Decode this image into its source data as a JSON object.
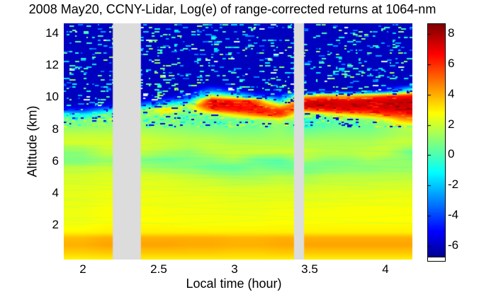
{
  "title": "2008 May20, CCNY-Lidar, Log(e) of range-corrected returns at 1064-nm",
  "axes": {
    "x": {
      "label": "Local time (hour)",
      "ticks": [
        2,
        2.5,
        3,
        3.5,
        4
      ]
    },
    "y": {
      "label": "Altitude (km)",
      "ticks": [
        14,
        12,
        10,
        8,
        6,
        4,
        2
      ]
    }
  },
  "colorbar": {
    "ticks": [
      8,
      6,
      4,
      2,
      0,
      -2,
      -4,
      -6
    ],
    "white_below": -6.68,
    "colormap": "jet"
  },
  "data_gaps_hours": [
    [
      2.197,
      2.383
    ],
    [
      3.395,
      3.462
    ]
  ],
  "gap_color": "#dcdcdc",
  "chart_data": {
    "type": "heatmap",
    "title": "2008 May20, CCNY-Lidar, Log(e) of range-corrected returns at 1064-nm",
    "xlabel": "Local time (hour)",
    "ylabel": "Altitude (km)",
    "colormap": "jet",
    "clim": [
      -6.98,
      8.65
    ],
    "xlim": [
      1.873,
      4.178
    ],
    "ylim": [
      -0.1,
      14.6
    ],
    "xticks": [
      2,
      2.5,
      3,
      3.5,
      4
    ],
    "yticks": [
      14,
      12,
      10,
      8,
      6,
      4,
      2
    ],
    "colorbar_ticks": [
      8,
      6,
      4,
      2,
      0,
      -2,
      -4,
      -6
    ],
    "x_hours": [
      1.87,
      2.0,
      2.15,
      2.38,
      2.55,
      2.7,
      2.85,
      3.0,
      3.15,
      3.3,
      3.47,
      3.6,
      3.75,
      3.9,
      4.0,
      4.1,
      4.18
    ],
    "altitudes_km": [
      14.6,
      13.5,
      12.5,
      11.5,
      10.8,
      10.4,
      10.1,
      9.8,
      9.5,
      9.2,
      8.9,
      8.6,
      8.2,
      7.7,
      7.2,
      6.6,
      6.1,
      5.6,
      5.0,
      4.2,
      3.2,
      2.2,
      1.6,
      1.25,
      0.8,
      0.3,
      -0.1
    ],
    "values_log_e": [
      [
        -6,
        -6,
        -6,
        -6,
        -6,
        -6,
        -6,
        -6,
        -6,
        -6,
        -6,
        -6,
        -6,
        -6,
        -6,
        -6,
        -6
      ],
      [
        -6,
        -6,
        -6,
        -6,
        -6,
        -6,
        -6,
        -6,
        -6,
        -6,
        -6,
        -6,
        -6,
        -6,
        -6,
        -6,
        -6
      ],
      [
        -6,
        -6,
        -6,
        -6,
        -6,
        -6,
        -6,
        -6,
        -6,
        -6,
        -6,
        -6,
        -6,
        -6,
        -6,
        -6,
        -6
      ],
      [
        -6,
        -6,
        -6,
        -6,
        -6,
        -6,
        -6,
        -6,
        -6,
        -6,
        -6,
        -6,
        -6,
        -6,
        -6,
        -6,
        -6
      ],
      [
        -6,
        -6,
        -6,
        -6,
        -6,
        -6,
        -6,
        -6,
        -6,
        -6,
        -6,
        -6,
        -6,
        -6,
        -6,
        -6,
        -6
      ],
      [
        -6,
        -6,
        -6,
        -6,
        -6,
        -6,
        -3,
        -5,
        -6,
        -6,
        -6,
        -6,
        -6,
        -6,
        -5,
        -2,
        1
      ],
      [
        -6,
        -6,
        -6,
        -6,
        -6,
        -5,
        2,
        0,
        -4,
        -5,
        3,
        4,
        3.5,
        4.5,
        5.5,
        6,
        6.5
      ],
      [
        -6,
        -6,
        -6,
        -5.5,
        -4,
        -2,
        7,
        6,
        5,
        -2,
        7,
        7.3,
        7,
        7.3,
        7.5,
        7.5,
        7.5
      ],
      [
        -6,
        -6,
        -5.5,
        -3,
        0,
        2,
        7.5,
        7,
        6,
        3,
        7.5,
        7.5,
        7.3,
        7.5,
        7.5,
        7.5,
        7.5
      ],
      [
        -4,
        -4.5,
        -2,
        1,
        3.5,
        1,
        5,
        6.5,
        6.5,
        6,
        5,
        6.5,
        7,
        6.5,
        7,
        7,
        7
      ],
      [
        -0.5,
        -1,
        0.5,
        1,
        1,
        0.5,
        1,
        3,
        5,
        6.5,
        0,
        1,
        3,
        4.5,
        5.5,
        6,
        6
      ],
      [
        0.5,
        0.5,
        1,
        1,
        0.5,
        0.3,
        0,
        0.5,
        1,
        2,
        -0.5,
        0,
        0.5,
        1,
        2,
        4,
        4.5
      ],
      [
        1,
        1,
        1.2,
        1.2,
        1,
        0.8,
        0.5,
        0.5,
        0.5,
        1,
        0,
        0.3,
        0.5,
        0.5,
        1,
        1.5,
        2
      ],
      [
        1.8,
        1.8,
        1.8,
        1.8,
        1.5,
        1.3,
        1.2,
        1,
        1,
        1.2,
        0.8,
        1,
        1,
        1,
        1.2,
        1.5,
        1.5
      ],
      [
        2.2,
        2.2,
        2.2,
        2.2,
        2,
        1.8,
        1.8,
        1.5,
        1.5,
        1.5,
        1.5,
        1.5,
        1.5,
        1.5,
        1.8,
        2,
        2
      ],
      [
        1,
        1.2,
        2,
        2,
        1.5,
        1.2,
        1.8,
        2,
        2,
        2,
        2,
        1.8,
        1.8,
        2,
        2,
        1.2,
        0.5
      ],
      [
        0.8,
        0.8,
        1.2,
        0.8,
        0.5,
        0.8,
        1,
        1.5,
        0.5,
        0.3,
        1.5,
        1,
        1,
        1.5,
        1.2,
        1.2,
        1
      ],
      [
        1.8,
        1.8,
        2,
        1.5,
        1.2,
        1,
        0.5,
        0.3,
        0.8,
        0.5,
        0.5,
        0.8,
        1,
        1,
        1.2,
        1.2,
        1.2
      ],
      [
        2.2,
        2.2,
        2.3,
        2.3,
        2.2,
        2,
        1.8,
        1.5,
        1.5,
        1.8,
        1.5,
        1.8,
        1.8,
        1.8,
        1.8,
        1.8,
        1.8
      ],
      [
        2.4,
        2.4,
        2.5,
        2.5,
        2.5,
        2.4,
        2.4,
        2.3,
        2.3,
        2.3,
        2.2,
        2.3,
        2.3,
        2.3,
        2.4,
        2.4,
        2.4
      ],
      [
        2.5,
        2.5,
        2.7,
        2.7,
        2.6,
        2.6,
        2.6,
        2.5,
        2.5,
        2.6,
        2.6,
        2.6,
        2.7,
        2.7,
        2.7,
        2.7,
        2.7
      ],
      [
        2.6,
        2.6,
        2.8,
        2.8,
        2.8,
        2.7,
        2.7,
        2.7,
        2.7,
        2.8,
        2.8,
        2.8,
        2.8,
        2.8,
        2.8,
        2.8,
        2.8
      ],
      [
        2.9,
        2.9,
        3,
        3,
        3,
        3,
        3,
        3,
        3,
        3,
        3,
        3,
        3,
        3,
        3,
        3,
        3
      ],
      [
        3.8,
        3.8,
        4,
        4,
        4,
        4,
        4,
        3.9,
        3.9,
        4,
        4,
        4,
        4,
        4,
        4,
        4,
        4
      ],
      [
        4,
        4,
        4.2,
        4.2,
        4.2,
        4.1,
        4.1,
        4,
        4,
        4.1,
        4.2,
        4.2,
        4.2,
        4.2,
        4.2,
        4.2,
        4.2
      ],
      [
        3.5,
        3.5,
        3.6,
        3.6,
        3.6,
        3.6,
        3.6,
        3.5,
        3.5,
        3.6,
        3.6,
        3.6,
        3.6,
        3.6,
        3.6,
        3.6,
        3.6
      ],
      [
        2.9,
        2.9,
        3,
        3,
        3,
        3,
        3,
        3,
        3,
        3,
        3,
        3,
        3,
        3,
        3,
        3,
        3
      ]
    ]
  }
}
